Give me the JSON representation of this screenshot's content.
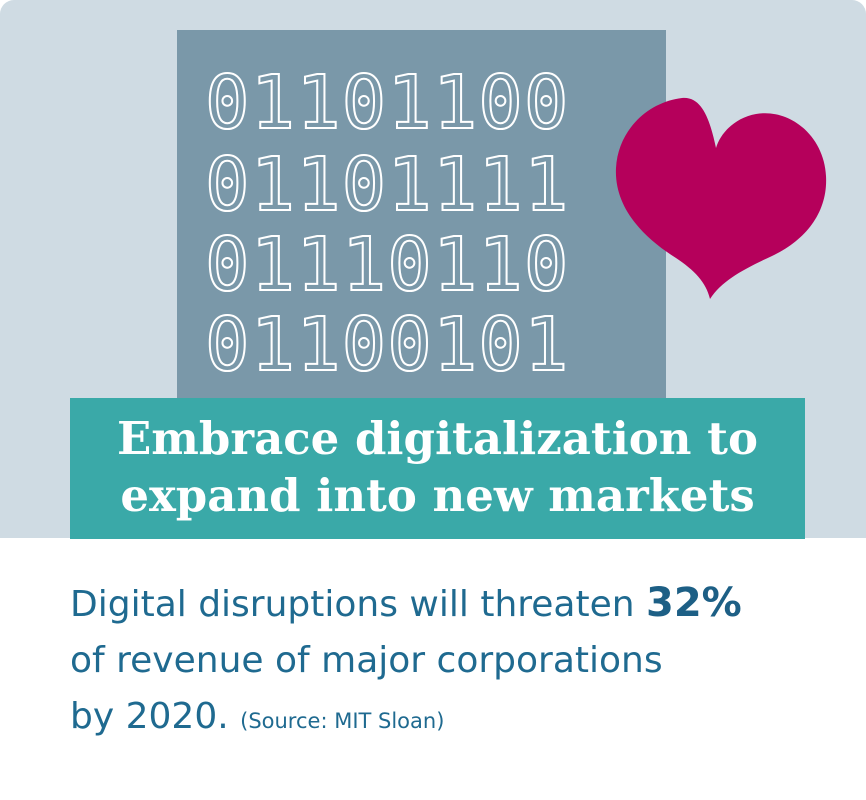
{
  "binary_lines": [
    "01101100",
    "01101111",
    "01110110",
    "01100101"
  ],
  "headline": {
    "line1": "Embrace digitalization to",
    "line2": "expand into new markets"
  },
  "body": {
    "line1_prefix": "Digital disruptions will threaten ",
    "highlight": "32%",
    "line2": "of revenue of major corporations",
    "line3": "by 2020.",
    "source": "(Source: MIT Sloan)"
  },
  "icons": [
    "heart-icon"
  ],
  "colors": {
    "panel_background": "#cfdbe3",
    "binary_block": "#7a98a9",
    "heart": "#b5005b",
    "banner": "#3aa9a8",
    "body_text": "#1f6a90"
  }
}
